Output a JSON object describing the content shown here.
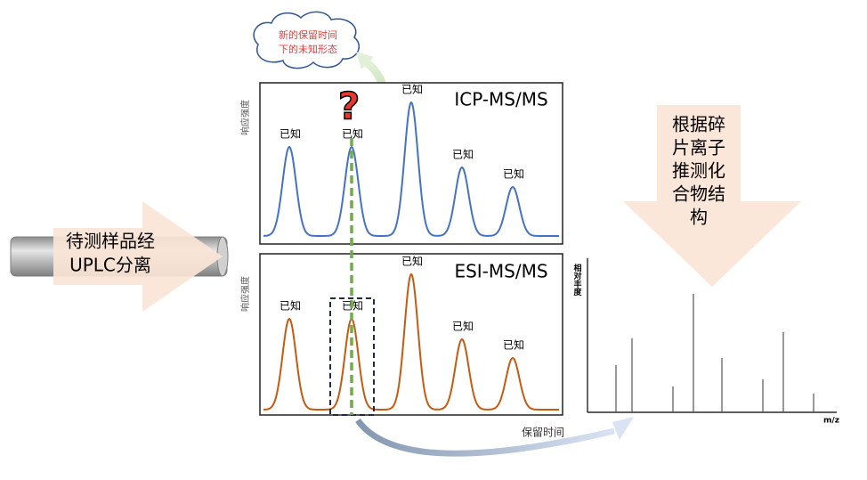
{
  "cloud": {
    "lines": [
      "新的保留时间",
      "下的未知形态"
    ]
  },
  "question_mark": "?",
  "sample_arrow": {
    "lines": [
      "待测样品经",
      "UPLC分离"
    ]
  },
  "icp_panel": {
    "title": "ICP-MS/MS",
    "y_label": "响应强度",
    "peak_labels": [
      "已知",
      "已知",
      "已知",
      "已知",
      "已知"
    ]
  },
  "esi_panel": {
    "title": "ESI-MS/MS",
    "y_label": "响应强度",
    "peak_labels": [
      "已知",
      "已知",
      "已知",
      "已知",
      "已知"
    ],
    "x_label": "保留时间"
  },
  "fragment_arrow": {
    "lines": [
      "根据碎",
      "片离子",
      "推测化",
      "合物结",
      "构"
    ]
  },
  "spectrum": {
    "y_label": "相对丰度",
    "x_label": "m/z"
  }
}
